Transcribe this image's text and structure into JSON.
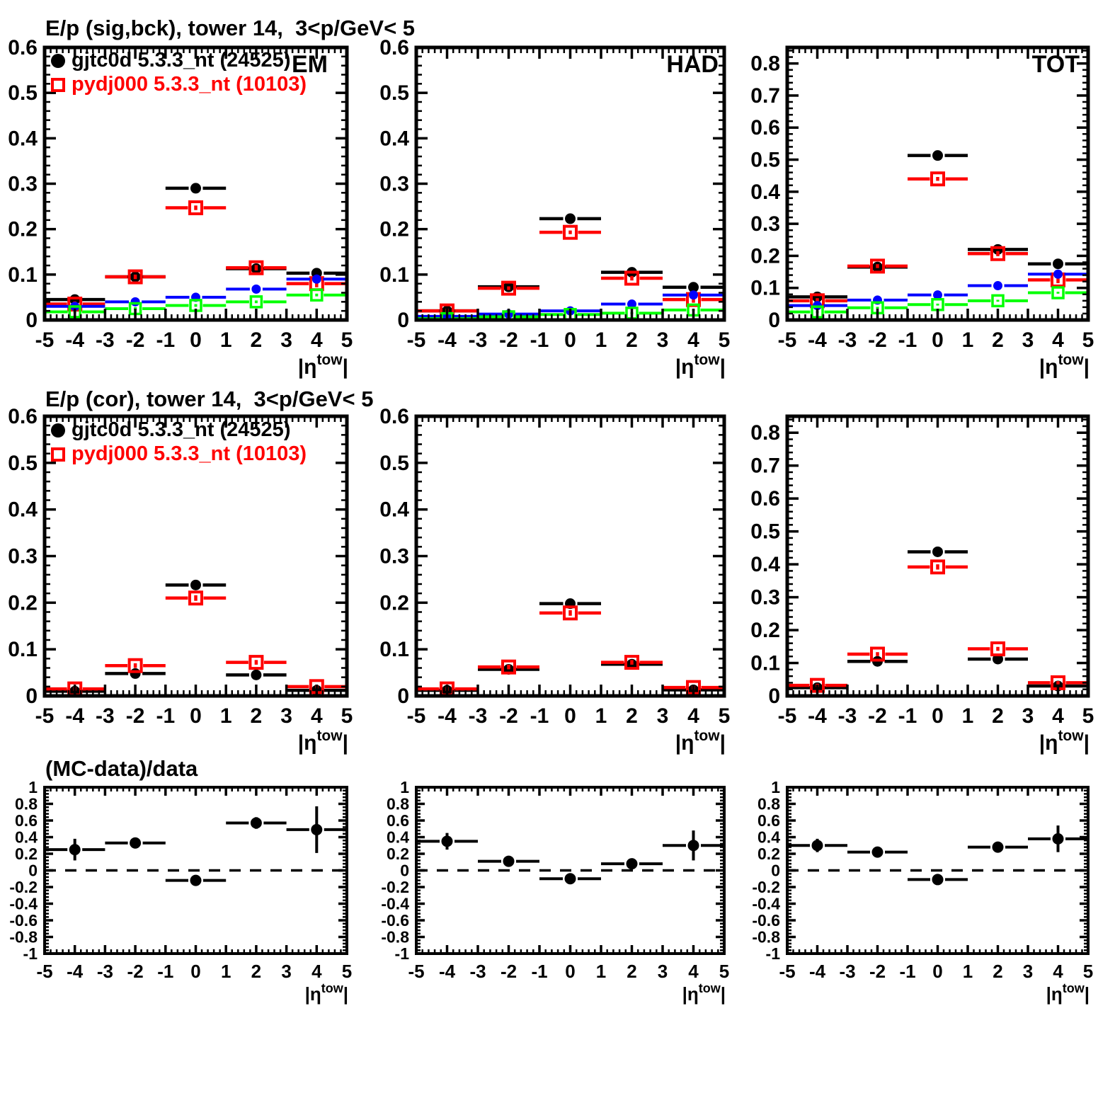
{
  "page": {
    "background": "#ffffff"
  },
  "colors": {
    "black": "#000000",
    "red": "#ff0000",
    "blue": "#0000ff",
    "green": "#00ff00"
  },
  "rows": [
    {
      "title": "E/p (sig,bck), tower 14,  3<p/GeV< 5"
    },
    {
      "title": "E/p (cor), tower 14,  3<p/GeV< 5"
    },
    {
      "title": "(MC-data)/data"
    }
  ],
  "legend": {
    "entries": [
      {
        "label": "gjtc0d 5.3.3_nt (24525)",
        "color": "#000000",
        "marker": "circle-filled"
      },
      {
        "label": "pydj000 5.3.3_nt (10103)",
        "color": "#ff0000",
        "marker": "square-open"
      }
    ]
  },
  "chart_data": [
    {
      "id": "sigbck-em",
      "type": "scatter",
      "row": 0,
      "col": 0,
      "panel_label": "EM",
      "title": "E/p (sig,bck), tower 14,  3<p/GeV< 5",
      "xlabel": "|η^{tow}|",
      "xlim": [
        -5,
        5
      ],
      "x_major": 1,
      "x_minor_div": 5,
      "ylim": [
        0,
        0.6
      ],
      "y_major": 0.1,
      "y_minor_div": 5,
      "y_label_max": 0.6,
      "zero_line": false,
      "x": [
        -4,
        -2,
        0,
        2,
        4
      ],
      "x_halfwidth": 1,
      "series": [
        {
          "name": "gjtc0d",
          "color": "#000000",
          "marker": "circle-filled",
          "msize": 7.5,
          "lw": 4.5,
          "values": [
            0.045,
            0.095,
            0.29,
            0.113,
            0.103
          ],
          "yerr": [
            0.004,
            0.003,
            0.003,
            0.004,
            0.006
          ]
        },
        {
          "name": "pydj000",
          "color": "#ff0000",
          "marker": "square-open",
          "msize": 8.5,
          "lw": 4.5,
          "mlw": 4,
          "values": [
            0.035,
            0.095,
            0.247,
            0.115,
            0.08
          ],
          "yerr": [
            0.006,
            0.005,
            0.005,
            0.006,
            0.008
          ]
        },
        {
          "name": "unlabeled-blue",
          "color": "#0000ff",
          "marker": "circle-filled",
          "msize": 6.5,
          "lw": 4,
          "values": [
            0.03,
            0.04,
            0.05,
            0.068,
            0.09
          ],
          "yerr": [
            0.002,
            0.002,
            0.002,
            0.002,
            0.003
          ]
        },
        {
          "name": "unlabeled-green",
          "color": "#00ff00",
          "marker": "square-open",
          "msize": 7.5,
          "lw": 4,
          "mlw": 3.5,
          "values": [
            0.018,
            0.025,
            0.032,
            0.04,
            0.055
          ],
          "yerr": [
            0.003,
            0.003,
            0.003,
            0.003,
            0.003
          ]
        }
      ]
    },
    {
      "id": "sigbck-had",
      "type": "scatter",
      "row": 0,
      "col": 1,
      "panel_label": "HAD",
      "xlabel": "|η^{tow}|",
      "xlim": [
        -5,
        5
      ],
      "x_major": 1,
      "x_minor_div": 5,
      "ylim": [
        0,
        0.6
      ],
      "y_major": 0.1,
      "y_minor_div": 5,
      "y_label_max": 0.6,
      "zero_line": false,
      "x": [
        -4,
        -2,
        0,
        2,
        4
      ],
      "x_halfwidth": 1,
      "series": [
        {
          "name": "gjtc0d",
          "color": "#000000",
          "marker": "circle-filled",
          "msize": 7.5,
          "lw": 4.5,
          "values": [
            0.02,
            0.073,
            0.223,
            0.105,
            0.072
          ],
          "yerr": [
            0.003,
            0.003,
            0.003,
            0.004,
            0.006
          ]
        },
        {
          "name": "pydj000",
          "color": "#ff0000",
          "marker": "square-open",
          "msize": 8.5,
          "lw": 4.5,
          "mlw": 4,
          "values": [
            0.02,
            0.07,
            0.193,
            0.092,
            0.045
          ],
          "yerr": [
            0.005,
            0.004,
            0.004,
            0.005,
            0.007
          ]
        },
        {
          "name": "unlabeled-blue",
          "color": "#0000ff",
          "marker": "circle-filled",
          "msize": 6.5,
          "lw": 4,
          "values": [
            0.008,
            0.013,
            0.02,
            0.035,
            0.055
          ],
          "yerr": [
            0.002,
            0.002,
            0.002,
            0.002,
            0.002
          ]
        },
        {
          "name": "unlabeled-green",
          "color": "#00ff00",
          "marker": "square-open",
          "msize": 7.5,
          "lw": 4,
          "mlw": 3.5,
          "values": [
            0.003,
            0.007,
            0.012,
            0.015,
            0.022
          ],
          "yerr": [
            0.002,
            0.002,
            0.002,
            0.002,
            0.002
          ]
        }
      ]
    },
    {
      "id": "sigbck-tot",
      "type": "scatter",
      "row": 0,
      "col": 2,
      "panel_label": "TOT",
      "xlabel": "|η^{tow}|",
      "xlim": [
        -5,
        5
      ],
      "x_major": 1,
      "x_minor_div": 5,
      "ylim": [
        0,
        0.85
      ],
      "y_major": 0.1,
      "y_minor_div": 5,
      "y_label_max": 0.8,
      "zero_line": false,
      "x": [
        -4,
        -2,
        0,
        2,
        4
      ],
      "x_halfwidth": 1,
      "series": [
        {
          "name": "gjtc0d",
          "color": "#000000",
          "marker": "circle-filled",
          "msize": 7.5,
          "lw": 4.5,
          "values": [
            0.072,
            0.165,
            0.513,
            0.22,
            0.175
          ],
          "yerr": [
            0.005,
            0.004,
            0.004,
            0.006,
            0.008
          ]
        },
        {
          "name": "pydj000",
          "color": "#ff0000",
          "marker": "square-open",
          "msize": 8.5,
          "lw": 4.5,
          "mlw": 4,
          "values": [
            0.06,
            0.168,
            0.44,
            0.207,
            0.125
          ],
          "yerr": [
            0.008,
            0.006,
            0.006,
            0.008,
            0.01
          ]
        },
        {
          "name": "unlabeled-blue",
          "color": "#0000ff",
          "marker": "circle-filled",
          "msize": 6.5,
          "lw": 4,
          "values": [
            0.045,
            0.062,
            0.078,
            0.107,
            0.143
          ],
          "yerr": [
            0.003,
            0.003,
            0.003,
            0.003,
            0.003
          ]
        },
        {
          "name": "unlabeled-green",
          "color": "#00ff00",
          "marker": "square-open",
          "msize": 7.5,
          "lw": 4,
          "mlw": 3.5,
          "values": [
            0.025,
            0.038,
            0.048,
            0.06,
            0.085
          ],
          "yerr": [
            0.003,
            0.003,
            0.003,
            0.003,
            0.003
          ]
        }
      ]
    },
    {
      "id": "cor-em",
      "type": "scatter",
      "row": 1,
      "col": 0,
      "panel_label": "",
      "title": "E/p (cor), tower 14,  3<p/GeV< 5",
      "xlabel": "|η^{tow}|",
      "xlim": [
        -5,
        5
      ],
      "x_major": 1,
      "x_minor_div": 5,
      "ylim": [
        0,
        0.6
      ],
      "y_major": 0.1,
      "y_minor_div": 5,
      "y_label_max": 0.6,
      "zero_line": false,
      "x": [
        -4,
        -2,
        0,
        2,
        4
      ],
      "x_halfwidth": 1,
      "series": [
        {
          "name": "gjtc0d",
          "color": "#000000",
          "marker": "circle-filled",
          "msize": 7.5,
          "lw": 4.5,
          "values": [
            0.01,
            0.048,
            0.238,
            0.045,
            0.012
          ],
          "yerr": [
            0.003,
            0.003,
            0.004,
            0.003,
            0.003
          ]
        },
        {
          "name": "pydj000",
          "color": "#ff0000",
          "marker": "square-open",
          "msize": 8.5,
          "lw": 4.5,
          "mlw": 4,
          "values": [
            0.015,
            0.065,
            0.21,
            0.072,
            0.02
          ],
          "yerr": [
            0.004,
            0.005,
            0.006,
            0.005,
            0.004
          ]
        }
      ]
    },
    {
      "id": "cor-had",
      "type": "scatter",
      "row": 1,
      "col": 1,
      "panel_label": "",
      "xlabel": "|η^{tow}|",
      "xlim": [
        -5,
        5
      ],
      "x_major": 1,
      "x_minor_div": 5,
      "ylim": [
        0,
        0.6
      ],
      "y_major": 0.1,
      "y_minor_div": 5,
      "y_label_max": 0.6,
      "zero_line": false,
      "x": [
        -4,
        -2,
        0,
        2,
        4
      ],
      "x_halfwidth": 1,
      "series": [
        {
          "name": "gjtc0d",
          "color": "#000000",
          "marker": "circle-filled",
          "msize": 7.5,
          "lw": 4.5,
          "values": [
            0.012,
            0.057,
            0.198,
            0.068,
            0.013
          ],
          "yerr": [
            0.003,
            0.003,
            0.004,
            0.003,
            0.003
          ]
        },
        {
          "name": "pydj000",
          "color": "#ff0000",
          "marker": "square-open",
          "msize": 8.5,
          "lw": 4.5,
          "mlw": 4,
          "values": [
            0.015,
            0.062,
            0.178,
            0.072,
            0.018
          ],
          "yerr": [
            0.004,
            0.005,
            0.006,
            0.005,
            0.004
          ]
        }
      ]
    },
    {
      "id": "cor-tot",
      "type": "scatter",
      "row": 1,
      "col": 2,
      "panel_label": "",
      "xlabel": "|η^{tow}|",
      "xlim": [
        -5,
        5
      ],
      "x_major": 1,
      "x_minor_div": 5,
      "ylim": [
        0,
        0.85
      ],
      "y_major": 0.1,
      "y_minor_div": 5,
      "y_label_max": 0.8,
      "zero_line": false,
      "x": [
        -4,
        -2,
        0,
        2,
        4
      ],
      "x_halfwidth": 1,
      "series": [
        {
          "name": "gjtc0d",
          "color": "#000000",
          "marker": "circle-filled",
          "msize": 7.5,
          "lw": 4.5,
          "values": [
            0.025,
            0.105,
            0.438,
            0.112,
            0.03
          ],
          "yerr": [
            0.004,
            0.004,
            0.005,
            0.004,
            0.004
          ]
        },
        {
          "name": "pydj000",
          "color": "#ff0000",
          "marker": "square-open",
          "msize": 8.5,
          "lw": 4.5,
          "mlw": 4,
          "values": [
            0.032,
            0.127,
            0.392,
            0.143,
            0.04
          ],
          "yerr": [
            0.005,
            0.006,
            0.008,
            0.006,
            0.005
          ]
        }
      ]
    },
    {
      "id": "ratio-em",
      "type": "scatter",
      "row": 2,
      "col": 0,
      "panel_label": "",
      "title": "(MC-data)/data",
      "xlabel": "|η^{tow}|",
      "xlim": [
        -5,
        5
      ],
      "x_major": 1,
      "x_minor_div": 5,
      "ylim": [
        -1,
        1
      ],
      "y_major": 0.2,
      "y_minor_div": 5,
      "y_label_max": 1,
      "zero_line": true,
      "x": [
        -4,
        -2,
        0,
        2,
        4
      ],
      "x_halfwidth": 1,
      "series": [
        {
          "name": "mc-data-over-data",
          "color": "#000000",
          "marker": "circle-filled",
          "msize": 8,
          "lw": 4,
          "values": [
            0.25,
            0.33,
            -0.12,
            0.57,
            0.49
          ],
          "yerr": [
            0.13,
            0.05,
            0.03,
            0.07,
            0.28
          ]
        }
      ]
    },
    {
      "id": "ratio-had",
      "type": "scatter",
      "row": 2,
      "col": 1,
      "panel_label": "",
      "xlabel": "|η^{tow}|",
      "xlim": [
        -5,
        5
      ],
      "x_major": 1,
      "x_minor_div": 5,
      "ylim": [
        -1,
        1
      ],
      "y_major": 0.2,
      "y_minor_div": 5,
      "y_label_max": 1,
      "zero_line": true,
      "x": [
        -4,
        -2,
        0,
        2,
        4
      ],
      "x_halfwidth": 1,
      "series": [
        {
          "name": "mc-data-over-data",
          "color": "#000000",
          "marker": "circle-filled",
          "msize": 8,
          "lw": 4,
          "values": [
            0.35,
            0.11,
            -0.1,
            0.08,
            0.3
          ],
          "yerr": [
            0.1,
            0.03,
            0.025,
            0.03,
            0.18
          ]
        }
      ]
    },
    {
      "id": "ratio-tot",
      "type": "scatter",
      "row": 2,
      "col": 2,
      "panel_label": "",
      "xlabel": "|η^{tow}|",
      "xlim": [
        -5,
        5
      ],
      "x_major": 1,
      "x_minor_div": 5,
      "ylim": [
        -1,
        1
      ],
      "y_major": 0.2,
      "y_minor_div": 5,
      "y_label_max": 1,
      "zero_line": true,
      "x": [
        -4,
        -2,
        0,
        2,
        4
      ],
      "x_halfwidth": 1,
      "series": [
        {
          "name": "mc-data-over-data",
          "color": "#000000",
          "marker": "circle-filled",
          "msize": 8,
          "lw": 4,
          "values": [
            0.3,
            0.22,
            -0.11,
            0.28,
            0.38
          ],
          "yerr": [
            0.08,
            0.03,
            0.02,
            0.03,
            0.16
          ]
        }
      ]
    }
  ]
}
